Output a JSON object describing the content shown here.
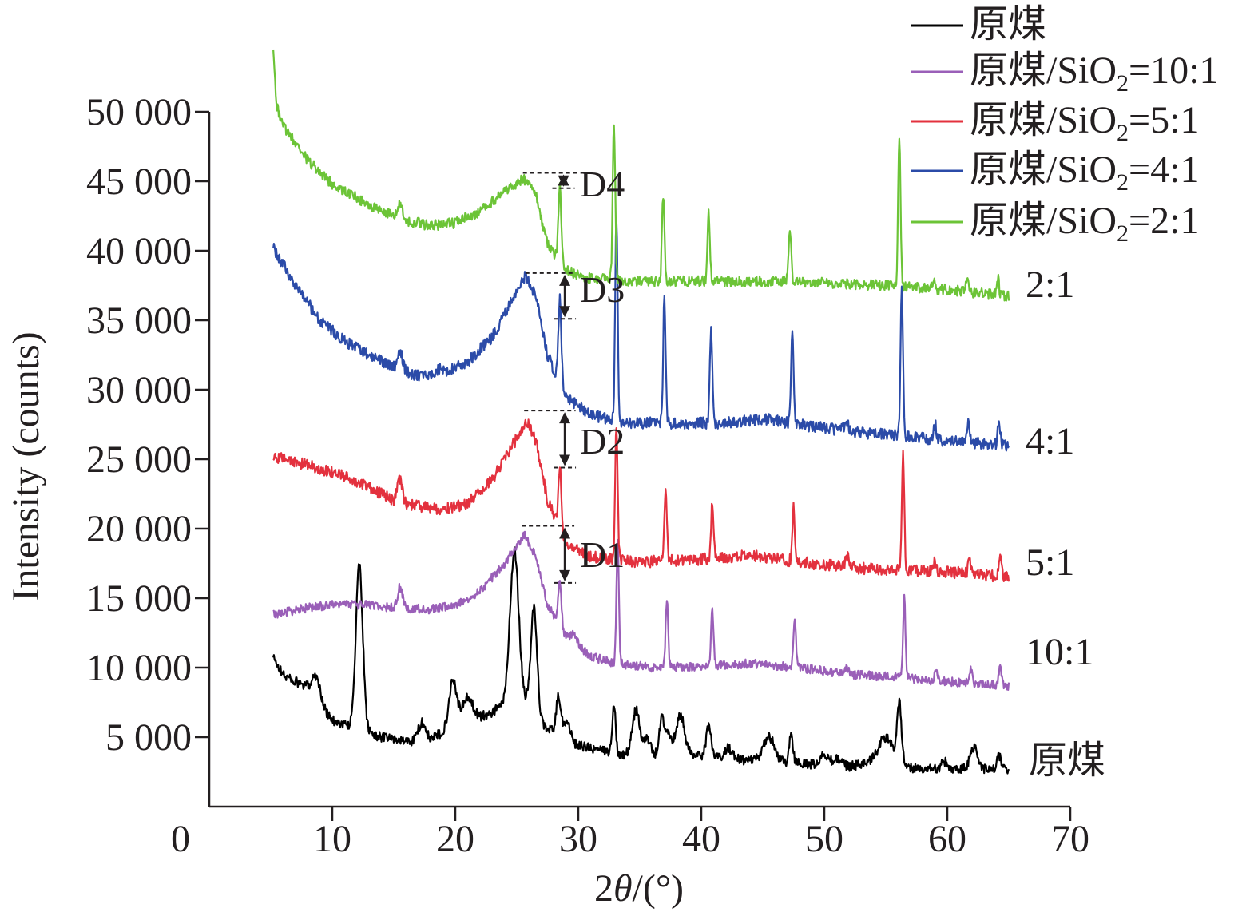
{
  "chart_data": {
    "type": "line",
    "xlabel_prefix": "2",
    "xlabel_theta": "θ",
    "xlabel_suffix": "/(°)",
    "ylabel": "Intensity (counts)",
    "xlim": [
      0,
      70
    ],
    "ylim": [
      0,
      50000
    ],
    "xticks": [
      0,
      10,
      20,
      30,
      40,
      50,
      60,
      70
    ],
    "xtick_labels": [
      "0",
      "10",
      "20",
      "30",
      "40",
      "50",
      "60",
      "70"
    ],
    "yticks": [
      0,
      5000,
      10000,
      15000,
      20000,
      25000,
      30000,
      35000,
      40000,
      45000,
      50000
    ],
    "ytick_labels": [
      "0",
      "5 000",
      "10 000",
      "15 000",
      "20 000",
      "25 000",
      "30 000",
      "35 000",
      "40 000",
      "45 000",
      "50 000"
    ],
    "legend_position": "top-right",
    "series": [
      {
        "name": "原煤",
        "legend_parts": [
          "原煤"
        ],
        "end_label": "原煤",
        "color": "#000000",
        "base": [
          [
            5,
            11000
          ],
          [
            6,
            9500
          ],
          [
            7,
            9000
          ],
          [
            8,
            8500
          ],
          [
            9,
            7200
          ],
          [
            10,
            6200
          ],
          [
            12,
            5600
          ],
          [
            14,
            5000
          ],
          [
            16,
            4700
          ],
          [
            18,
            4800
          ],
          [
            20,
            6000
          ],
          [
            22,
            6400
          ],
          [
            23,
            6800
          ],
          [
            24,
            7400
          ],
          [
            25,
            8000
          ],
          [
            26,
            7300
          ],
          [
            27,
            6000
          ],
          [
            28,
            5300
          ],
          [
            30,
            4400
          ],
          [
            33,
            3800
          ],
          [
            36,
            3700
          ],
          [
            38,
            3900
          ],
          [
            40,
            3600
          ],
          [
            44,
            3300
          ],
          [
            48,
            3100
          ],
          [
            52,
            2900
          ],
          [
            55,
            3200
          ],
          [
            57,
            2800
          ],
          [
            60,
            2600
          ],
          [
            62,
            2800
          ],
          [
            65,
            2500
          ]
        ],
        "peaks": [
          [
            8.7,
            1800,
            0.35
          ],
          [
            12.2,
            11800,
            0.28
          ],
          [
            17.3,
            1300,
            0.3
          ],
          [
            19.8,
            3200,
            0.3
          ],
          [
            21.0,
            1600,
            0.45
          ],
          [
            24.8,
            10500,
            0.35
          ],
          [
            26.4,
            7500,
            0.25
          ],
          [
            28.4,
            2800,
            0.2
          ],
          [
            29.1,
            1300,
            0.25
          ],
          [
            32.9,
            3500,
            0.14
          ],
          [
            34.7,
            3200,
            0.3
          ],
          [
            35.6,
            1200,
            0.25
          ],
          [
            36.8,
            2600,
            0.2
          ],
          [
            37.3,
            1600,
            0.18
          ],
          [
            38.3,
            2800,
            0.35
          ],
          [
            40.6,
            2300,
            0.2
          ],
          [
            42.2,
            800,
            0.3
          ],
          [
            45.5,
            1800,
            0.45
          ],
          [
            47.3,
            2000,
            0.16
          ],
          [
            50.0,
            800,
            0.3
          ],
          [
            51.0,
            500,
            0.3
          ],
          [
            55.0,
            1800,
            0.6
          ],
          [
            56.1,
            4200,
            0.18
          ],
          [
            59.8,
            600,
            0.3
          ],
          [
            62.2,
            1500,
            0.3
          ],
          [
            64.2,
            1000,
            0.2
          ]
        ],
        "noise": 350
      },
      {
        "name": "原煤/SiO2=10:1",
        "legend_parts": [
          "原煤/SiO",
          "2",
          "=10:1"
        ],
        "end_label": "10:1",
        "color": "#9a5fb8",
        "base": [
          [
            5,
            13800
          ],
          [
            8,
            14300
          ],
          [
            11,
            14600
          ],
          [
            13,
            14500
          ],
          [
            15,
            14300
          ],
          [
            18,
            14200
          ],
          [
            20,
            14500
          ],
          [
            22,
            15500
          ],
          [
            24,
            17500
          ],
          [
            25.6,
            19600
          ],
          [
            26.5,
            18000
          ],
          [
            27.5,
            14500
          ],
          [
            29,
            12200
          ],
          [
            31,
            10800
          ],
          [
            33,
            10300
          ],
          [
            36,
            10000
          ],
          [
            40,
            10100
          ],
          [
            44,
            10300
          ],
          [
            48,
            10000
          ],
          [
            52,
            9500
          ],
          [
            56,
            9300
          ],
          [
            60,
            9000
          ],
          [
            65,
            8700
          ]
        ],
        "peaks": [
          [
            15.5,
            1500,
            0.2
          ],
          [
            28.5,
            3500,
            0.12
          ],
          [
            29.7,
            600,
            0.3
          ],
          [
            33.2,
            8600,
            0.1
          ],
          [
            37.2,
            5000,
            0.1
          ],
          [
            40.9,
            4000,
            0.1
          ],
          [
            47.6,
            3500,
            0.1
          ],
          [
            51.8,
            500,
            0.2
          ],
          [
            56.5,
            5700,
            0.1
          ],
          [
            59.1,
            700,
            0.1
          ],
          [
            61.9,
            1100,
            0.1
          ],
          [
            64.3,
            1400,
            0.1
          ]
        ],
        "noise": 320
      },
      {
        "name": "原煤/SiO2=5:1",
        "legend_parts": [
          "原煤/SiO",
          "2",
          "=5:1"
        ],
        "end_label": "5:1",
        "color": "#e3313e",
        "base": [
          [
            5,
            25200
          ],
          [
            8,
            24600
          ],
          [
            11,
            23800
          ],
          [
            13,
            23000
          ],
          [
            15,
            22000
          ],
          [
            17,
            21600
          ],
          [
            19,
            21400
          ],
          [
            21,
            21800
          ],
          [
            23,
            23500
          ],
          [
            25,
            26500
          ],
          [
            25.8,
            27800
          ],
          [
            26.6,
            26200
          ],
          [
            27.5,
            22000
          ],
          [
            29,
            19000
          ],
          [
            31,
            18000
          ],
          [
            35,
            17600
          ],
          [
            40,
            17800
          ],
          [
            44,
            18100
          ],
          [
            48,
            17600
          ],
          [
            52,
            17200
          ],
          [
            56,
            17000
          ],
          [
            60,
            16900
          ],
          [
            65,
            16500
          ]
        ],
        "peaks": [
          [
            15.5,
            1700,
            0.2
          ],
          [
            28.5,
            4500,
            0.12
          ],
          [
            33.1,
            9800,
            0.1
          ],
          [
            37.1,
            5200,
            0.1
          ],
          [
            40.9,
            4100,
            0.1
          ],
          [
            47.5,
            4000,
            0.1
          ],
          [
            51.9,
            700,
            0.2
          ],
          [
            56.4,
            8400,
            0.1
          ],
          [
            59.0,
            700,
            0.1
          ],
          [
            61.8,
            1200,
            0.1
          ],
          [
            64.3,
            1300,
            0.1
          ]
        ],
        "noise": 420
      },
      {
        "name": "原煤/SiO2=4:1",
        "legend_parts": [
          "原煤/SiO",
          "2",
          "=4:1"
        ],
        "end_label": "4:1",
        "color": "#2b4ba8",
        "base": [
          [
            5,
            40500
          ],
          [
            7,
            37500
          ],
          [
            9,
            35000
          ],
          [
            11,
            33500
          ],
          [
            13,
            32500
          ],
          [
            15,
            31600
          ],
          [
            17,
            31000
          ],
          [
            19,
            31200
          ],
          [
            21,
            32000
          ],
          [
            23,
            33800
          ],
          [
            25,
            37000
          ],
          [
            25.7,
            38200
          ],
          [
            26.6,
            36500
          ],
          [
            27.5,
            32500
          ],
          [
            29,
            29500
          ],
          [
            31,
            28200
          ],
          [
            34,
            27600
          ],
          [
            38,
            27600
          ],
          [
            42,
            27600
          ],
          [
            45,
            27900
          ],
          [
            48,
            27500
          ],
          [
            52,
            27000
          ],
          [
            56,
            26700
          ],
          [
            60,
            26300
          ],
          [
            65,
            26000
          ]
        ],
        "peaks": [
          [
            15.5,
            1400,
            0.2
          ],
          [
            18.8,
            500,
            0.15
          ],
          [
            28.5,
            6000,
            0.12
          ],
          [
            33.1,
            14800,
            0.1
          ],
          [
            37.0,
            9000,
            0.1
          ],
          [
            40.8,
            6900,
            0.1
          ],
          [
            47.4,
            6300,
            0.1
          ],
          [
            51.8,
            500,
            0.2
          ],
          [
            56.3,
            10800,
            0.1
          ],
          [
            59.0,
            1100,
            0.1
          ],
          [
            61.7,
            1400,
            0.1
          ],
          [
            64.2,
            1800,
            0.1
          ]
        ],
        "noise": 420
      },
      {
        "name": "原煤/SiO2=2:1",
        "legend_parts": [
          "原煤/SiO",
          "2",
          "=2:1"
        ],
        "end_label": "2:1",
        "color": "#6cc437",
        "base": [
          [
            5,
            51500
          ],
          [
            6,
            49000
          ],
          [
            8,
            46500
          ],
          [
            10,
            44800
          ],
          [
            12,
            43800
          ],
          [
            14,
            42800
          ],
          [
            16,
            42200
          ],
          [
            18,
            41800
          ],
          [
            20,
            42000
          ],
          [
            22,
            42800
          ],
          [
            24,
            44200
          ],
          [
            25.5,
            45200
          ],
          [
            26.5,
            44200
          ],
          [
            27.5,
            40500
          ],
          [
            29,
            38600
          ],
          [
            31,
            38000
          ],
          [
            35,
            37800
          ],
          [
            40,
            37800
          ],
          [
            45,
            37800
          ],
          [
            50,
            37700
          ],
          [
            55,
            37500
          ],
          [
            60,
            37200
          ],
          [
            65,
            36700
          ]
        ],
        "peaks": [
          [
            5.2,
            3500,
            0.12
          ],
          [
            15.5,
            1000,
            0.2
          ],
          [
            28.5,
            5400,
            0.12
          ],
          [
            32.9,
            11500,
            0.1
          ],
          [
            36.9,
            6300,
            0.1
          ],
          [
            40.6,
            4800,
            0.1
          ],
          [
            47.2,
            4000,
            0.1
          ],
          [
            56.1,
            11000,
            0.1
          ],
          [
            58.9,
            700,
            0.1
          ],
          [
            61.6,
            1000,
            0.1
          ],
          [
            64.1,
            1300,
            0.1
          ]
        ],
        "noise": 380
      }
    ],
    "annotations": [
      {
        "label": "D1",
        "x": 25.4,
        "y_top": 20200,
        "y_bottom": 16100,
        "x_arrow": 28.9,
        "x_dash_end": 28.9
      },
      {
        "label": "D2",
        "x": 25.6,
        "y_top": 28500,
        "y_bottom": 24400,
        "x_arrow": 28.9,
        "x_dash_end": 29.0
      },
      {
        "label": "D3",
        "x": 25.7,
        "y_top": 38400,
        "y_bottom": 35100,
        "x_arrow": 28.9,
        "x_dash_end": 29.0
      },
      {
        "label": "D4",
        "x": 25.5,
        "y_top": 45600,
        "y_bottom": 44500,
        "x_arrow": 28.8,
        "x_dash_end": 29.6
      }
    ]
  }
}
